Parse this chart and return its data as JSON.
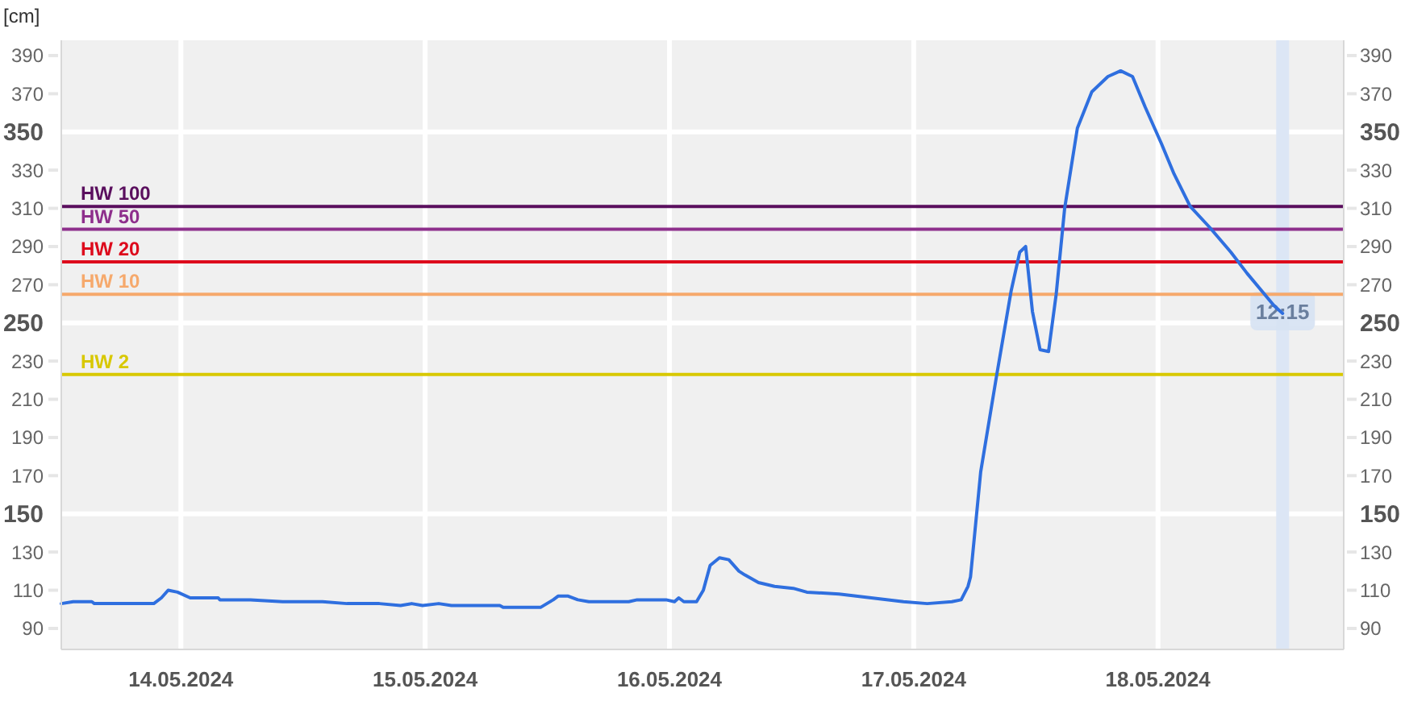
{
  "chart_data": {
    "type": "line",
    "ylabel": "[cm]",
    "x": [
      "2024-05-13T12:15",
      "2024-05-13T13:25",
      "2024-05-13T15:15",
      "2024-05-13T15:30",
      "2024-05-13T21:20",
      "2024-05-13T22:05",
      "2024-05-13T22:45",
      "2024-05-13T23:40",
      "2024-05-14T00:55",
      "2024-05-14T03:40",
      "2024-05-14T03:50",
      "2024-05-14T06:50",
      "2024-05-14T10:00",
      "2024-05-14T13:55",
      "2024-05-14T16:20",
      "2024-05-14T19:30",
      "2024-05-14T21:35",
      "2024-05-14T22:40",
      "2024-05-14T23:45",
      "2024-05-15T01:20",
      "2024-05-15T02:35",
      "2024-05-15T07:20",
      "2024-05-15T07:40",
      "2024-05-15T11:20",
      "2024-05-15T12:35",
      "2024-05-15T13:05",
      "2024-05-15T14:00",
      "2024-05-15T15:00",
      "2024-05-15T16:05",
      "2024-05-15T20:00",
      "2024-05-15T20:50",
      "2024-05-15T23:40",
      "2024-05-16T00:30",
      "2024-05-16T00:55",
      "2024-05-16T01:25",
      "2024-05-16T02:40",
      "2024-05-16T03:20",
      "2024-05-16T04:00",
      "2024-05-16T04:55",
      "2024-05-16T05:50",
      "2024-05-16T06:50",
      "2024-05-16T07:25",
      "2024-05-16T08:45",
      "2024-05-16T10:20",
      "2024-05-16T12:10",
      "2024-05-16T13:30",
      "2024-05-16T16:40",
      "2024-05-16T19:50",
      "2024-05-16T23:00",
      "2024-05-17T01:20",
      "2024-05-17T03:45",
      "2024-05-17T04:40",
      "2024-05-17T05:20",
      "2024-05-17T05:35",
      "2024-05-17T06:35",
      "2024-05-17T08:10",
      "2024-05-17T09:35",
      "2024-05-17T10:25",
      "2024-05-17T11:00",
      "2024-05-17T11:40",
      "2024-05-17T12:25",
      "2024-05-17T13:15",
      "2024-05-17T14:00",
      "2024-05-17T14:50",
      "2024-05-17T16:05",
      "2024-05-17T17:30",
      "2024-05-17T19:05",
      "2024-05-17T20:20",
      "2024-05-17T21:30",
      "2024-05-17T22:45",
      "2024-05-18T00:20",
      "2024-05-18T01:35",
      "2024-05-18T03:10",
      "2024-05-18T05:05",
      "2024-05-18T07:10",
      "2024-05-18T08:45",
      "2024-05-18T11:25",
      "2024-05-18T12:15"
    ],
    "series": [
      {
        "color": "#2f6fdf",
        "values": [
          103,
          104,
          104,
          103,
          103,
          106,
          110,
          109,
          106,
          106,
          105,
          105,
          104,
          104,
          103,
          103,
          102,
          103,
          102,
          103,
          102,
          102,
          101,
          101,
          105,
          107,
          107,
          105,
          104,
          104,
          105,
          105,
          104,
          106,
          104,
          104,
          110,
          123,
          127,
          126,
          120,
          118,
          114,
          112,
          111,
          109,
          108,
          106,
          104,
          103,
          104,
          105,
          112,
          117,
          172,
          223,
          267,
          287,
          290,
          256,
          236,
          235,
          265,
          310,
          352,
          371,
          379,
          382,
          379,
          363,
          344,
          328,
          311,
          300,
          287,
          276,
          259,
          255
        ]
      }
    ],
    "xlim": [
      "2024-05-13T12:15",
      "2024-05-18T18:15"
    ],
    "xticks": [
      {
        "value": "2024-05-14",
        "label": "14.05.2024"
      },
      {
        "value": "2024-05-15",
        "label": "15.05.2024"
      },
      {
        "value": "2024-05-16",
        "label": "16.05.2024"
      },
      {
        "value": "2024-05-17",
        "label": "17.05.2024"
      },
      {
        "value": "2024-05-18",
        "label": "18.05.2024"
      }
    ],
    "ylim": [
      79,
      398
    ],
    "yticks": [
      90,
      110,
      130,
      150,
      170,
      190,
      210,
      230,
      250,
      270,
      290,
      310,
      330,
      350,
      370,
      390
    ],
    "y2lim": [
      79,
      398
    ],
    "y2ticks": [
      90,
      110,
      130,
      150,
      170,
      190,
      210,
      230,
      250,
      270,
      290,
      310,
      330,
      350,
      370,
      390
    ],
    "grid": true,
    "line_style": "solid",
    "marker": "none",
    "ref_lines": [
      {
        "axis": "y",
        "value": 311,
        "label": "HW 100",
        "color": "#5a0f5e"
      },
      {
        "axis": "y",
        "value": 299,
        "label": "HW 50",
        "color": "#8e2f8c"
      },
      {
        "axis": "y",
        "value": 282,
        "label": "HW 20",
        "color": "#dd0a1c"
      },
      {
        "axis": "y",
        "value": 265,
        "label": "HW 10",
        "color": "#f6a96c"
      },
      {
        "axis": "y",
        "value": 223,
        "label": "HW 2",
        "color": "#d8c800"
      },
      {
        "axis": "x",
        "value": "2024-05-18T12:15",
        "label": "12:15",
        "color": "#dce6f5"
      }
    ]
  }
}
